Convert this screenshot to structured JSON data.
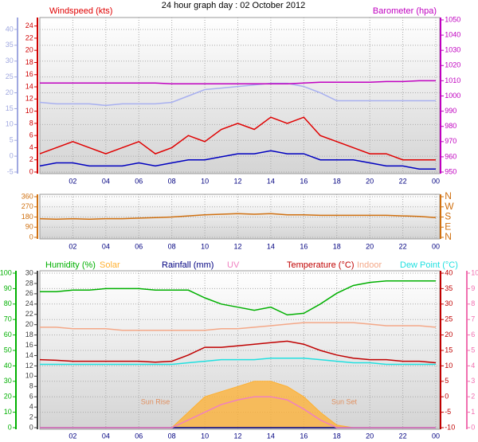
{
  "chart_data": [
    {
      "type": "line",
      "title": "24 hour graph day : 02 October 2012",
      "x": [
        0,
        1,
        2,
        3,
        4,
        5,
        6,
        7,
        8,
        9,
        10,
        11,
        12,
        13,
        14,
        15,
        16,
        17,
        18,
        19,
        20,
        21,
        22,
        23,
        24
      ],
      "xlim": [
        0,
        24
      ],
      "xticks": [
        {
          "value": 2,
          "label": "02"
        },
        {
          "value": 4,
          "label": "04"
        },
        {
          "value": 6,
          "label": "06"
        },
        {
          "value": 8,
          "label": "08"
        },
        10,
        12,
        14,
        16,
        18,
        20,
        22,
        {
          "value": 24,
          "label": "00"
        }
      ],
      "axes": [
        {
          "color": "#a0a8e0",
          "lim": [
            -5,
            43
          ],
          "ticks": [
            -5,
            0,
            5,
            10,
            15,
            20,
            25,
            30,
            35,
            40
          ]
        },
        {
          "color": "#d00000",
          "lim": [
            0,
            25
          ],
          "ticks": [
            0,
            2,
            4,
            6,
            8,
            10,
            12,
            14,
            16,
            18,
            20,
            22,
            24
          ]
        },
        {
          "color": "#c000c0",
          "lim": [
            950,
            1050
          ],
          "ticks": [
            950,
            960,
            970,
            980,
            990,
            1000,
            1010,
            1020,
            1030,
            1040,
            1050
          ]
        }
      ],
      "series": [
        {
          "name": "Windspeed (kts)",
          "color": "#e00000",
          "axis": 1,
          "values": [
            3,
            4,
            5,
            4,
            3,
            4,
            5,
            3,
            4,
            6,
            5,
            7,
            8,
            7,
            9,
            8,
            9,
            6,
            5,
            4,
            3,
            3,
            2,
            2,
            2
          ]
        },
        {
          "color": "#0000c0",
          "axis": 1,
          "values": [
            1,
            1.5,
            1.5,
            1,
            1,
            1,
            1.5,
            1,
            1.5,
            2,
            2,
            2.5,
            3,
            3,
            3.5,
            3,
            3,
            2,
            2,
            2,
            1.5,
            1,
            1,
            0.5,
            0.5
          ]
        },
        {
          "color": "#a8b0f0",
          "axis": 0,
          "values": [
            17,
            16.5,
            16.5,
            16.5,
            16,
            16.5,
            16.5,
            16.5,
            17,
            19,
            21,
            21.5,
            22,
            22.5,
            23,
            23,
            22,
            20,
            17.5,
            17.5,
            17.5,
            17.5,
            17.5,
            17.5,
            17.5
          ]
        },
        {
          "name": "Barometer (hpa)",
          "color": "#c000c0",
          "axis": 2,
          "values": [
            1008.5,
            1008.5,
            1008.5,
            1008.5,
            1008.5,
            1008.5,
            1008.5,
            1008.5,
            1008,
            1008,
            1008,
            1008,
            1008,
            1008,
            1008,
            1008,
            1008.5,
            1009,
            1009,
            1009,
            1009,
            1009.5,
            1009.5,
            1010,
            1010
          ]
        }
      ]
    },
    {
      "type": "line",
      "x": [
        0,
        1,
        2,
        3,
        4,
        5,
        6,
        7,
        8,
        9,
        10,
        11,
        12,
        13,
        14,
        15,
        16,
        17,
        18,
        19,
        20,
        21,
        22,
        23,
        24
      ],
      "xlim": [
        0,
        24
      ],
      "xticks": [
        {
          "value": 2,
          "label": "02"
        },
        {
          "value": 4,
          "label": "04"
        },
        {
          "value": 6,
          "label": "06"
        },
        {
          "value": 8,
          "label": "08"
        },
        10,
        12,
        14,
        16,
        18,
        20,
        22,
        {
          "value": 24,
          "label": "00"
        }
      ],
      "axes": [
        {
          "color": "#d07010",
          "lim": [
            0,
            360
          ],
          "ticks": [
            0,
            90,
            180,
            270,
            360
          ]
        },
        {
          "color": "#d07010",
          "lim": [
            0,
            360
          ],
          "ticks": [
            {
              "value": 0,
              "label": "N"
            },
            {
              "value": 90,
              "label": "E"
            },
            {
              "value": 180,
              "label": "S"
            },
            {
              "value": 270,
              "label": "W"
            },
            {
              "value": 360,
              "label": "N"
            }
          ]
        }
      ],
      "series": [
        {
          "color": "#d07010",
          "axis": 0,
          "values": [
            165,
            160,
            165,
            160,
            165,
            165,
            170,
            175,
            180,
            190,
            200,
            205,
            210,
            205,
            210,
            200,
            200,
            195,
            195,
            195,
            195,
            195,
            190,
            185,
            175
          ]
        }
      ]
    },
    {
      "type": "line",
      "x": [
        0,
        1,
        2,
        3,
        4,
        5,
        6,
        7,
        8,
        9,
        10,
        11,
        12,
        13,
        14,
        15,
        16,
        17,
        18,
        19,
        20,
        21,
        22,
        23,
        24
      ],
      "xlim": [
        0,
        24
      ],
      "xticks": [
        {
          "value": 2,
          "label": "02"
        },
        {
          "value": 4,
          "label": "04"
        },
        {
          "value": 6,
          "label": "06"
        },
        {
          "value": 8,
          "label": "08"
        },
        10,
        12,
        14,
        16,
        18,
        20,
        22,
        {
          "value": 24,
          "label": "00"
        }
      ],
      "axes": [
        {
          "color": "#00b000",
          "lim": [
            0,
            100
          ],
          "ticks": [
            0,
            10,
            20,
            30,
            40,
            50,
            60,
            70,
            80,
            90,
            100
          ]
        },
        {
          "color": "#404040",
          "lim": [
            0,
            30
          ],
          "ticks": [
            0,
            2,
            4,
            6,
            8,
            10,
            12,
            14,
            16,
            18,
            20,
            22,
            24,
            26,
            28,
            30
          ]
        },
        {
          "color": "#c00000",
          "lim": [
            -10,
            40
          ],
          "ticks": [
            -10,
            -5,
            0,
            5,
            10,
            15,
            20,
            25,
            30,
            35,
            40
          ]
        },
        {
          "color": "#f070b0",
          "lim": [
            0,
            10
          ],
          "ticks": [
            0,
            1,
            2,
            3,
            4,
            5,
            6,
            7,
            8,
            9,
            10
          ]
        }
      ],
      "series": [
        {
          "name": "Humidity (%)",
          "color": "#00b000",
          "axis": 0,
          "values": [
            88,
            88,
            89,
            89,
            90,
            90,
            90,
            89,
            89,
            89,
            84,
            80,
            78,
            76,
            78,
            73,
            74,
            80,
            87,
            92,
            94,
            95,
            95,
            95,
            95
          ]
        },
        {
          "name": "Solar",
          "color": "#ffb030",
          "axis": 1,
          "area": true,
          "values": [
            0,
            0,
            0,
            0,
            0,
            0,
            0,
            0,
            0,
            3,
            6,
            7,
            8,
            9,
            9,
            8,
            6,
            3,
            0.5,
            0,
            0,
            0,
            0,
            0,
            0
          ]
        },
        {
          "name": "Rainfall (mm)",
          "color": "#000080",
          "axis": 1,
          "values": [
            0,
            0,
            0,
            0,
            0,
            0,
            0,
            0,
            0,
            0,
            0,
            0,
            0,
            0,
            0,
            0,
            0,
            0,
            0,
            0,
            0,
            0,
            0,
            0,
            0
          ]
        },
        {
          "name": "UV",
          "color": "#f080c0",
          "axis": 3,
          "values": [
            0,
            0,
            0,
            0,
            0,
            0,
            0,
            0,
            0,
            0.5,
            1,
            1.5,
            1.8,
            2,
            2,
            1.8,
            1.2,
            0.5,
            0,
            0,
            0,
            0,
            0,
            0,
            0
          ]
        },
        {
          "name": "Temperature (°C)",
          "color": "#c00000",
          "axis": 2,
          "values": [
            12,
            11.8,
            11.5,
            11.5,
            11.5,
            11.5,
            11.5,
            11.2,
            11.5,
            13.5,
            16,
            16,
            16.5,
            17,
            17.5,
            18,
            17,
            15,
            13.5,
            12.5,
            12,
            12,
            11.5,
            11.5,
            11
          ]
        },
        {
          "name": "Indoor",
          "color": "#f4a888",
          "axis": 2,
          "values": [
            22.5,
            22.5,
            22,
            22,
            22,
            21.5,
            21.5,
            21.5,
            21.5,
            21.5,
            21.5,
            22,
            22,
            22.5,
            23,
            23.5,
            24,
            24,
            24,
            24,
            23.5,
            23,
            23,
            23,
            22.5
          ]
        },
        {
          "name": "Dew Point (°C)",
          "color": "#20e0e0",
          "axis": 2,
          "values": [
            10.5,
            10.5,
            10.5,
            10.5,
            10.5,
            10.5,
            10.5,
            10.5,
            10.5,
            11,
            11.5,
            12,
            12,
            12,
            12.5,
            12.5,
            12.5,
            12,
            11.5,
            11,
            11,
            10.5,
            10.5,
            10.5,
            10.5
          ]
        }
      ],
      "annotations": [
        "Sun Rise",
        "Sun Set"
      ]
    }
  ]
}
